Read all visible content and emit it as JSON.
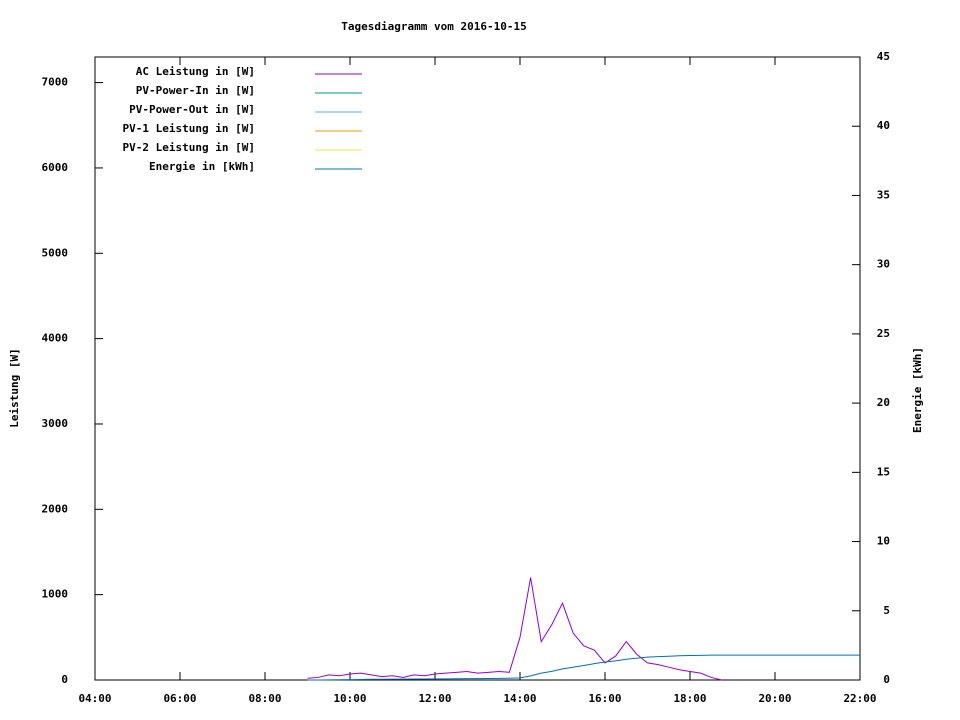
{
  "chart_data": {
    "type": "line",
    "title": "Tagesdiagramm vom 2016-10-15",
    "y_label": "Leistung [W]",
    "y2_label": "Energie [kWh]",
    "xlim": [
      4,
      22
    ],
    "xticks": [
      {
        "value": 4,
        "label": "04:00"
      },
      {
        "value": 6,
        "label": "06:00"
      },
      {
        "value": 8,
        "label": "08:00"
      },
      {
        "value": 10,
        "label": "10:00"
      },
      {
        "value": 12,
        "label": "12:00"
      },
      {
        "value": 14,
        "label": "14:00"
      },
      {
        "value": 16,
        "label": "16:00"
      },
      {
        "value": 18,
        "label": "18:00"
      },
      {
        "value": 20,
        "label": "20:00"
      },
      {
        "value": 22,
        "label": "22:00"
      }
    ],
    "ylim": [
      0,
      7300
    ],
    "yticks": [
      0,
      1000,
      2000,
      3000,
      4000,
      5000,
      6000,
      7000
    ],
    "y2lim": [
      0,
      45
    ],
    "y2ticks": [
      0,
      5,
      10,
      15,
      20,
      25,
      30,
      35,
      40,
      45
    ],
    "legend": "top-left",
    "x": [
      9,
      9.25,
      9.5,
      9.75,
      10,
      10.25,
      10.5,
      10.75,
      11,
      11.25,
      11.5,
      11.75,
      12,
      12.25,
      12.5,
      12.75,
      13,
      13.25,
      13.5,
      13.75,
      14,
      14.25,
      14.5,
      14.75,
      15,
      15.25,
      15.5,
      15.75,
      16,
      16.25,
      16.5,
      16.75,
      17,
      17.25,
      17.5,
      17.75,
      18,
      18.25,
      18.5,
      18.75,
      19,
      19.25,
      19.5,
      19.75,
      20,
      20.25,
      20.5,
      20.75,
      21,
      21.25,
      21.5,
      21.75,
      22
    ],
    "series": [
      {
        "name": "AC Leistung in [W]",
        "color": "#9400d3",
        "values": [
          20,
          30,
          60,
          50,
          70,
          80,
          60,
          40,
          50,
          30,
          60,
          50,
          70,
          80,
          90,
          100,
          80,
          90,
          100,
          90,
          500,
          1200,
          450,
          650,
          900,
          550,
          400,
          350,
          200,
          280,
          450,
          300,
          200,
          180,
          150,
          120,
          100,
          80,
          30,
          0,
          null,
          null,
          null,
          null,
          null,
          null,
          null,
          null,
          null,
          null,
          null,
          null,
          null
        ]
      },
      {
        "name": "PV-Power-In in [W]",
        "color": "#009e73",
        "values": [
          null,
          null,
          null,
          null,
          null,
          null,
          null,
          null,
          null,
          null,
          null,
          null,
          null,
          null,
          null,
          null,
          null,
          null,
          null,
          null,
          null,
          null,
          null,
          null,
          null,
          null,
          null,
          null,
          null,
          null,
          null,
          null,
          null,
          null,
          null,
          null,
          null,
          null,
          null,
          null,
          null,
          null,
          null,
          null,
          null,
          null,
          null,
          null,
          null,
          null,
          null,
          null,
          null
        ]
      },
      {
        "name": "PV-Power-Out in [W]",
        "color": "#56b4e9",
        "values": [
          null,
          null,
          null,
          null,
          null,
          null,
          null,
          null,
          null,
          null,
          null,
          null,
          null,
          null,
          null,
          null,
          null,
          null,
          null,
          null,
          null,
          null,
          null,
          null,
          null,
          null,
          null,
          null,
          null,
          null,
          null,
          null,
          null,
          null,
          null,
          null,
          null,
          null,
          null,
          null,
          null,
          null,
          null,
          null,
          null,
          null,
          null,
          null,
          null,
          null,
          null,
          null,
          null
        ]
      },
      {
        "name": "PV-1 Leistung in [W]",
        "color": "#e69f00",
        "values": [
          null,
          null,
          null,
          null,
          null,
          null,
          null,
          null,
          null,
          null,
          null,
          null,
          null,
          null,
          null,
          null,
          null,
          null,
          null,
          null,
          null,
          null,
          null,
          null,
          null,
          null,
          null,
          null,
          null,
          null,
          null,
          null,
          null,
          null,
          null,
          null,
          null,
          null,
          null,
          null,
          null,
          null,
          null,
          null,
          null,
          null,
          null,
          null,
          null,
          null,
          null,
          null,
          null
        ]
      },
      {
        "name": "PV-2 Leistung in [W]",
        "color": "#f0e442",
        "values": [
          null,
          null,
          null,
          null,
          null,
          null,
          null,
          null,
          null,
          null,
          null,
          null,
          null,
          null,
          null,
          null,
          null,
          null,
          null,
          null,
          null,
          null,
          null,
          null,
          null,
          null,
          null,
          null,
          null,
          null,
          null,
          null,
          null,
          null,
          null,
          null,
          null,
          null,
          null,
          null,
          null,
          null,
          null,
          null,
          null,
          null,
          null,
          null,
          null,
          null,
          null,
          null,
          null
        ]
      },
      {
        "name": "Energie in [kWh]",
        "color": "#0072b2",
        "axis": "y2",
        "values": [
          0,
          0,
          0.01,
          0.02,
          0.03,
          0.04,
          0.05,
          0.05,
          0.06,
          0.06,
          0.07,
          0.07,
          0.08,
          0.08,
          0.09,
          0.1,
          0.1,
          0.11,
          0.12,
          0.13,
          0.15,
          0.3,
          0.5,
          0.62,
          0.8,
          0.92,
          1.05,
          1.18,
          1.3,
          1.38,
          1.5,
          1.58,
          1.65,
          1.69,
          1.72,
          1.75,
          1.77,
          1.78,
          1.8,
          1.8,
          1.8,
          1.8,
          1.8,
          1.8,
          1.8,
          1.8,
          1.8,
          1.8,
          1.8,
          1.8,
          1.8,
          1.8,
          1.8
        ]
      }
    ]
  }
}
